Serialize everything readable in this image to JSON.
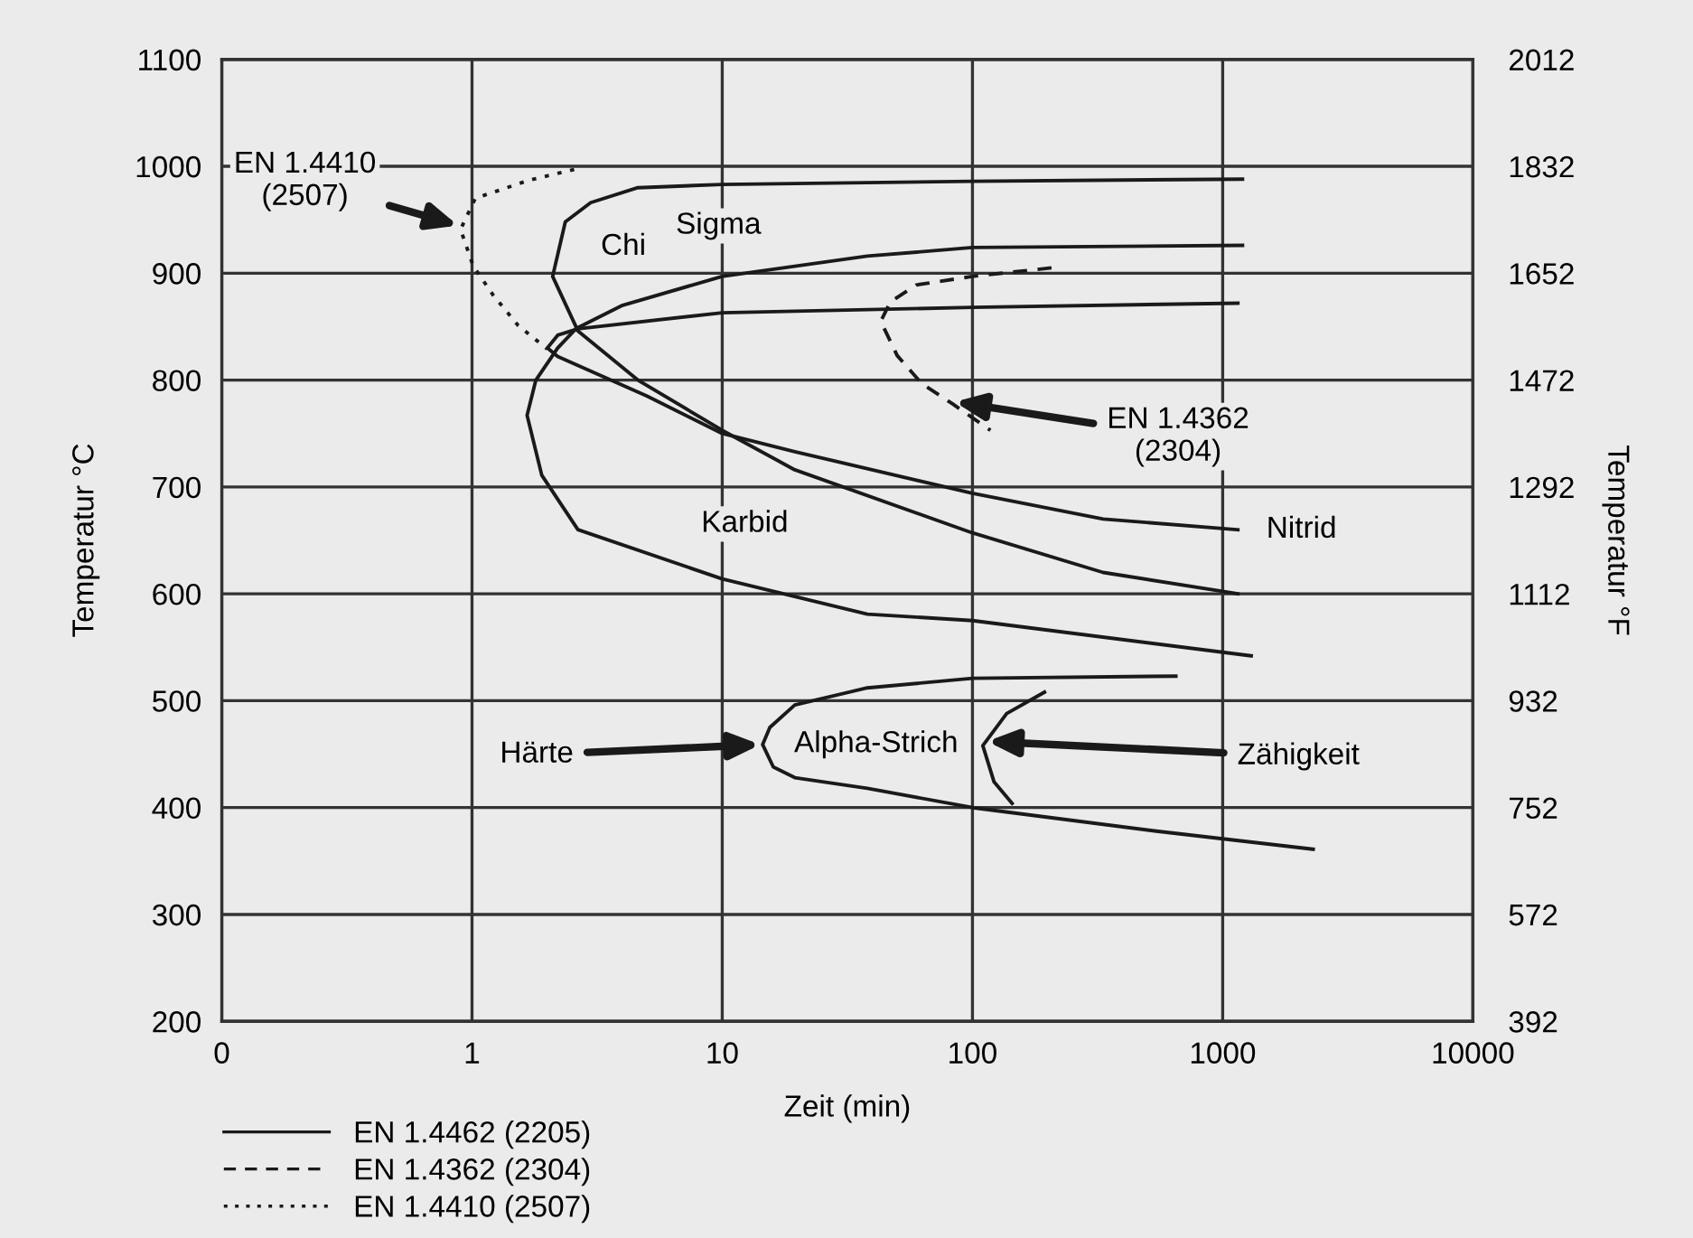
{
  "chart_data": {
    "type": "line",
    "xlabel": "Zeit (min)",
    "ylabel": "Temperatur °C",
    "y2label": "Temperatur °F",
    "log": "x",
    "xlim": [
      0.1,
      10000
    ],
    "xticks": [
      {
        "value": 0.1,
        "label": "0"
      },
      1,
      10,
      100,
      1000,
      10000
    ],
    "ylim": [
      200,
      1100
    ],
    "yticks": [
      200,
      300,
      400,
      500,
      600,
      700,
      800,
      900,
      1000,
      1100
    ],
    "y2lim": [
      392,
      2012
    ],
    "y2ticks": [
      392,
      572,
      752,
      932,
      1112,
      1292,
      1472,
      1652,
      1832,
      2012
    ],
    "grid": true,
    "legend": "bottom left",
    "series": [
      {
        "name": "EN 1.4462 (2205)",
        "color": "#1a1a1a",
        "line_style": "solid",
        "x": [
          1200,
          100,
          10,
          4.6,
          2.98,
          2.36,
          2.1,
          2.65,
          4.6,
          10,
          19.5,
          100,
          333,
          1150
        ],
        "values": [
          988,
          986,
          983,
          980,
          966,
          948,
          897,
          846,
          800,
          753,
          716,
          657,
          620,
          600
        ]
      },
      {
        "color": "#1a1a1a",
        "line_style": "solid",
        "x": [
          1200,
          100,
          38,
          10,
          4,
          2.6,
          2.2,
          1.8,
          1.66,
          1.9,
          2.65,
          10,
          38,
          100,
          1300
        ],
        "values": [
          926,
          924,
          916,
          897,
          870,
          848,
          830,
          800,
          767,
          711,
          660,
          614,
          581,
          575,
          542
        ]
      },
      {
        "color": "#1a1a1a",
        "line_style": "solid",
        "x": [
          1150,
          100,
          10,
          2.65,
          2.2,
          2.0,
          2.2,
          5,
          10,
          19.5,
          100,
          333,
          1150
        ],
        "values": [
          872,
          868,
          863,
          848,
          842,
          830,
          822,
          785,
          750,
          733,
          694,
          670,
          660
        ]
      },
      {
        "color": "#1a1a1a",
        "line_style": "solid",
        "x": [
          650,
          100,
          38,
          19.5,
          15.5,
          14.5,
          16,
          19.5,
          38,
          100,
          543,
          2300
        ],
        "values": [
          523,
          521,
          512,
          496,
          475,
          459,
          438,
          428,
          418,
          400,
          378,
          361
        ]
      },
      {
        "color": "#1a1a1a",
        "line_style": "solid",
        "x": [
          194,
          137,
          110,
          122,
          144
        ],
        "values": [
          508,
          488,
          458,
          424,
          404
        ]
      },
      {
        "name": "EN 1.4362 (2304)",
        "color": "#1a1a1a",
        "line_style": "dashed",
        "x": [
          207,
          100,
          59.6,
          47,
          43,
          50,
          62.5,
          83,
          118
        ],
        "values": [
          905,
          897,
          889,
          873,
          855,
          823,
          797,
          778,
          753
        ]
      },
      {
        "name": "EN 1.4410 (2507)",
        "color": "#1a1a1a",
        "line_style": "dotted",
        "x": [
          2.56,
          1.69,
          1.03,
          0.9,
          1.01,
          1.21,
          1.53,
          2.0
        ],
        "values": [
          997,
          987,
          970,
          941,
          907,
          880,
          851,
          829
        ]
      }
    ],
    "annotations": [
      "Chi",
      "Sigma",
      "Karbid",
      "Nitrid",
      "Alpha-Strich",
      {
        "text": "EN 1.4410\n(2507)",
        "x": 0.9,
        "y": 944
      },
      {
        "text": "EN 1.4362\n(2304)",
        "x": 83,
        "y": 780
      },
      {
        "text": "Härte",
        "x": 14.5,
        "y": 459
      },
      {
        "text": "Zähigkeit",
        "x": 112,
        "y": 462
      }
    ]
  }
}
